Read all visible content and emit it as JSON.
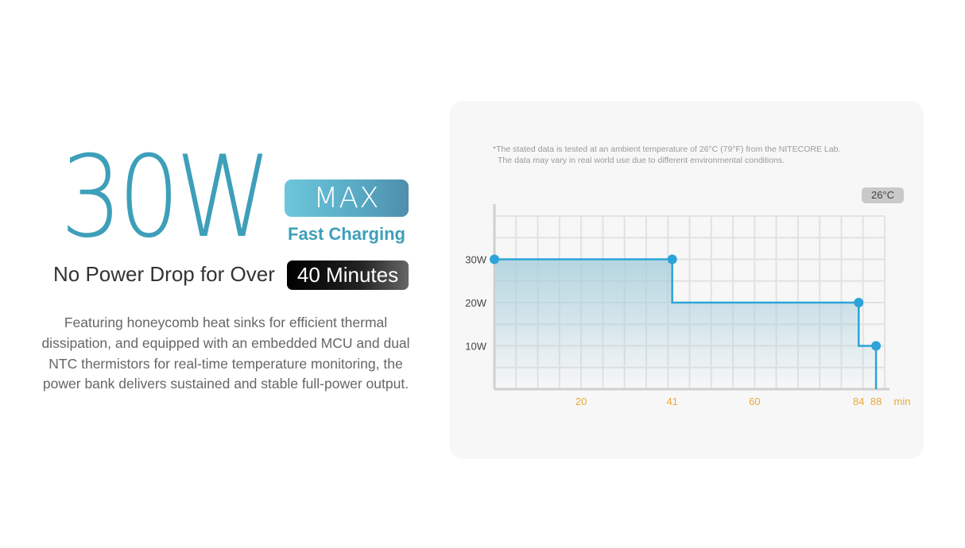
{
  "headline": {
    "power": "30W",
    "max_label": "MAX",
    "subtitle": "Fast Charging"
  },
  "tagline": {
    "text": "No Power Drop for Over",
    "highlight": "40 Minutes"
  },
  "description": "Featuring honeycomb heat sinks for efficient thermal dissipation, and equipped with an embedded MCU and dual NTC thermistors for real-time temperature monitoring, the power bank delivers sustained and stable full-power output.",
  "chart_data": {
    "type": "line",
    "step": true,
    "note": [
      "*The stated data is tested at an ambient temperature of 26°C (79°F) from the NITECORE Lab.",
      "The data may vary in real world use due to different environmental conditions."
    ],
    "badge": "26°C",
    "xlabel": "min",
    "xlim": [
      0,
      90
    ],
    "ylim": [
      0,
      40
    ],
    "grid": true,
    "x_ticks": [
      {
        "value": 20,
        "label": "20"
      },
      {
        "value": 41,
        "label": "41"
      },
      {
        "value": 60,
        "label": "60"
      },
      {
        "value": 84,
        "label": "84"
      },
      {
        "value": 88,
        "label": "88"
      }
    ],
    "y_ticks": [
      {
        "value": 30,
        "label": "30W"
      },
      {
        "value": 20,
        "label": "20W"
      },
      {
        "value": 10,
        "label": "10W"
      }
    ],
    "series": [
      {
        "points": [
          [
            0,
            30
          ],
          [
            41,
            30
          ],
          [
            41,
            20
          ],
          [
            84,
            20
          ],
          [
            84,
            10
          ],
          [
            88,
            10
          ],
          [
            88,
            0
          ]
        ],
        "markers": [
          [
            0,
            30
          ],
          [
            41,
            30
          ],
          [
            84,
            20
          ],
          [
            88,
            10
          ]
        ]
      }
    ],
    "colors": {
      "line": "#2ea3d8",
      "fill": "#a9cfdc",
      "tick": "#e8a93a",
      "grid": "#e2e2e2"
    }
  }
}
